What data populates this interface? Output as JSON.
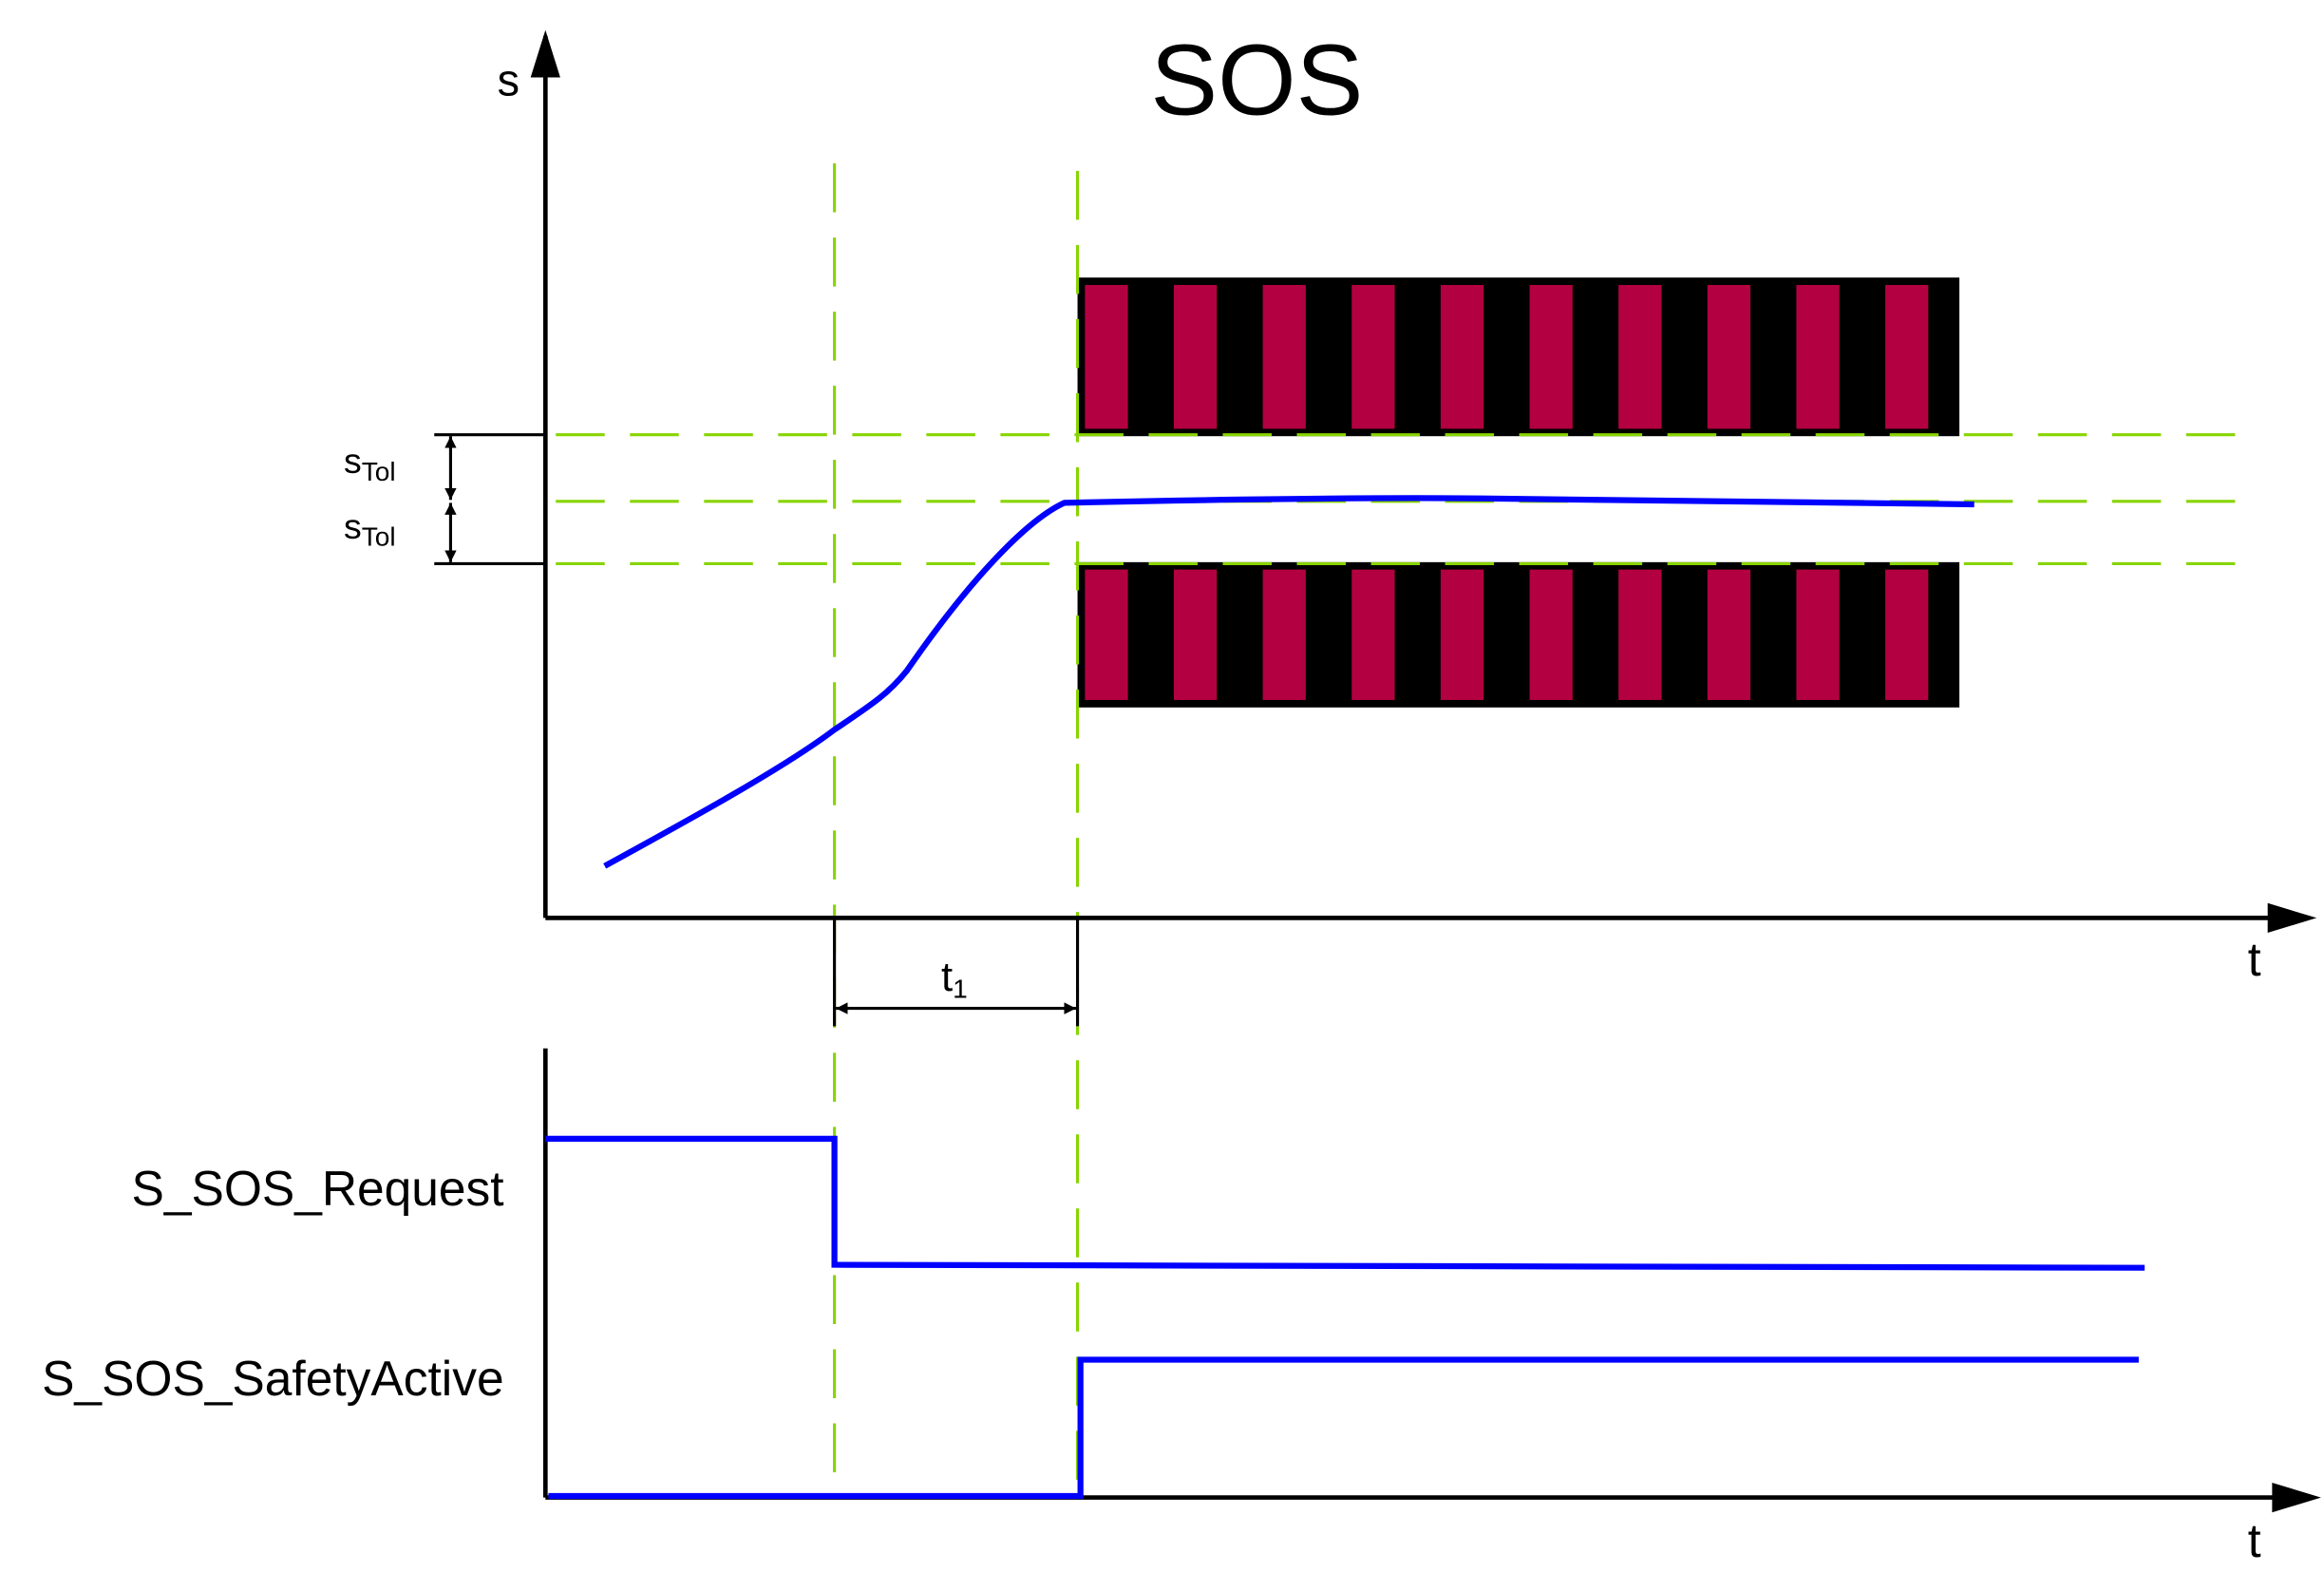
{
  "title": "SOS",
  "axes": {
    "upper_y_label": "s",
    "upper_x_label": "t",
    "lower_x_label": "t"
  },
  "tolerance": {
    "label_main": "s",
    "label_sub": "Tol",
    "count": 2
  },
  "interval": {
    "label_main": "t",
    "label_sub": "1"
  },
  "signals": [
    {
      "name": "S_SOS_Request"
    },
    {
      "name": "S_SOS_SafetyActive"
    }
  ],
  "colors": {
    "signal": "#0000ff",
    "guide": "#88d400",
    "zone_fill": "#b30040",
    "zone_border": "#000000"
  }
}
